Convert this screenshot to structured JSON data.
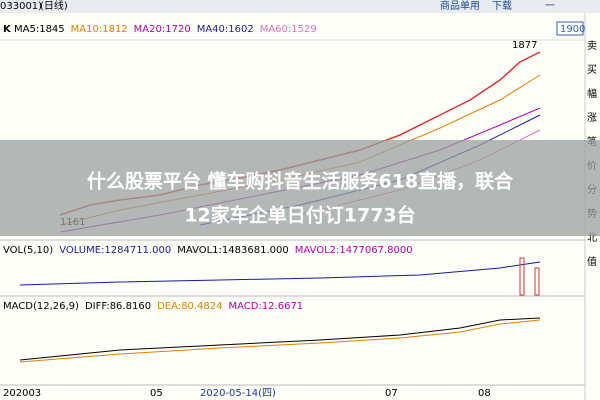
{
  "header": {
    "code": "033001)",
    "period": "(日线)",
    "menu": [
      "商品单用",
      "下载",
      "一"
    ],
    "price_box": "1900"
  },
  "price_panel": {
    "label": "K",
    "ma": [
      {
        "text": "MA5:1845",
        "color": "#000000"
      },
      {
        "text": "MA10:1812",
        "color": "#e08000"
      },
      {
        "text": "MA20:1720",
        "color": "#b000b0"
      },
      {
        "text": "MA40:1602",
        "color": "#1a1a9a"
      },
      {
        "text": "MA60:1529",
        "color": "#e070c0"
      }
    ],
    "high_label": "1877",
    "low_label": "1161"
  },
  "volume_panel": {
    "indicators": [
      "VOL(5,10)",
      "VOLUME:1284711.000",
      "MAVOL1:1483681.000",
      "MAVOL2:1477067.8000"
    ]
  },
  "macd_panel": {
    "indicators": [
      "MACD(12,26,9)",
      "DIFF:86.8160",
      "DEA:80.4824",
      "MACD:12.6671"
    ]
  },
  "x_axis": [
    "202003",
    "05",
    "2020-05-14(四)",
    "07",
    "08"
  ],
  "side_tabs": [
    "卖",
    "买",
    "幅",
    "涨",
    "笔",
    "价",
    "分",
    "势",
    "北",
    "值"
  ],
  "overlay": {
    "line1": "什么股票平台 懂车购抖音生活服务618直播，联合",
    "line2": "12家车企单日付订1773台"
  }
}
